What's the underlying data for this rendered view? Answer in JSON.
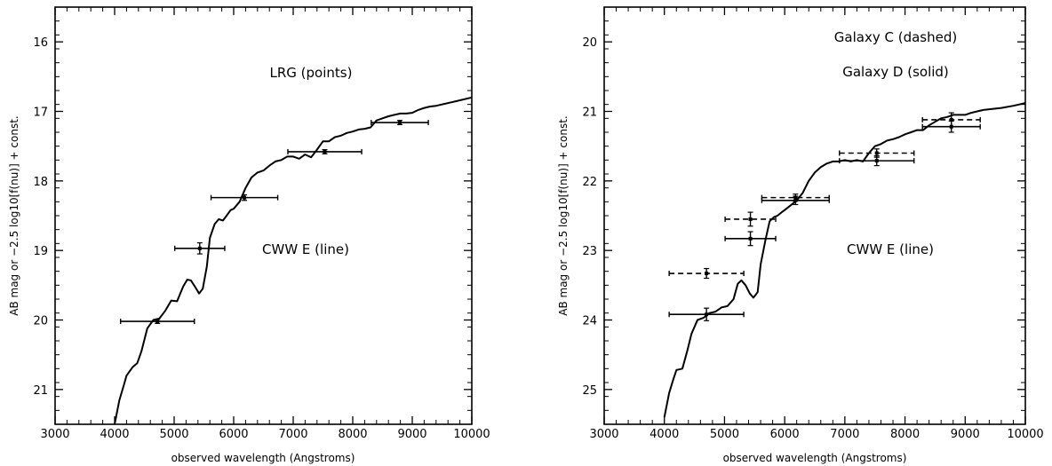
{
  "chart_data": [
    {
      "type": "line",
      "xlabel": "observed wavelength (Angstroms)",
      "ylabel": "AB mag or −2.5 log10[f(nu)] + const.",
      "xlim": [
        3000,
        10000
      ],
      "ylim": [
        21.5,
        15.5
      ],
      "y_inverted": true,
      "x_ticks": [
        3000,
        4000,
        5000,
        6000,
        7000,
        8000,
        9000,
        10000
      ],
      "y_ticks": [
        16,
        17,
        18,
        19,
        20,
        21
      ],
      "annotations": [
        "LRG (points)",
        "CWW E (line)"
      ],
      "series": [
        {
          "name": "CWW E",
          "style": "solid",
          "x": [
            4000,
            4080,
            4150,
            4200,
            4300,
            4380,
            4450,
            4550,
            4650,
            4750,
            4850,
            4950,
            5050,
            5150,
            5220,
            5280,
            5350,
            5420,
            5480,
            5550,
            5600,
            5680,
            5750,
            5820,
            5880,
            5950,
            6000,
            6100,
            6200,
            6300,
            6400,
            6500,
            6600,
            6700,
            6800,
            6900,
            7000,
            7100,
            7200,
            7300,
            7400,
            7500,
            7600,
            7700,
            7800,
            7900,
            8000,
            8100,
            8200,
            8300,
            8400,
            8500,
            8600,
            8700,
            8800,
            8900,
            9000,
            9100,
            9200,
            9300,
            9400,
            9600,
            9800,
            10000
          ],
          "y": [
            21.5,
            21.15,
            20.95,
            20.8,
            20.68,
            20.62,
            20.45,
            20.12,
            20.0,
            19.98,
            19.87,
            19.72,
            19.73,
            19.52,
            19.42,
            19.43,
            19.52,
            19.62,
            19.55,
            19.23,
            18.82,
            18.62,
            18.55,
            18.57,
            18.5,
            18.42,
            18.4,
            18.3,
            18.1,
            17.95,
            17.88,
            17.85,
            17.78,
            17.72,
            17.7,
            17.65,
            17.65,
            17.68,
            17.62,
            17.66,
            17.55,
            17.43,
            17.43,
            17.37,
            17.35,
            17.31,
            17.29,
            17.26,
            17.25,
            17.23,
            17.13,
            17.1,
            17.07,
            17.05,
            17.03,
            17.03,
            17.02,
            16.98,
            16.95,
            16.93,
            16.92,
            16.88,
            16.84,
            16.8
          ]
        },
        {
          "name": "LRG",
          "style": "points",
          "x": [
            4720,
            5430,
            6180,
            7530,
            8790
          ],
          "y": [
            20.02,
            18.97,
            18.24,
            17.58,
            17.16
          ],
          "x_err": [
            620,
            420,
            560,
            620,
            480
          ],
          "y_err": [
            0.03,
            0.08,
            0.04,
            0.03,
            0.03
          ]
        }
      ]
    },
    {
      "type": "line",
      "xlabel": "observed wavelength (Angstroms)",
      "ylabel": "AB mag or −2.5 log10[f(nu)] + const.",
      "xlim": [
        3000,
        10000
      ],
      "ylim": [
        25.5,
        19.5
      ],
      "y_inverted": true,
      "x_ticks": [
        3000,
        4000,
        5000,
        6000,
        7000,
        8000,
        9000,
        10000
      ],
      "y_ticks": [
        20,
        21,
        22,
        23,
        24,
        25
      ],
      "annotations": [
        "Galaxy C (dashed)",
        "Galaxy D (solid)",
        "CWW E (line)"
      ],
      "series": [
        {
          "name": "CWW E",
          "style": "solid",
          "x": [
            4000,
            4080,
            4150,
            4200,
            4300,
            4380,
            4450,
            4550,
            4650,
            4750,
            4850,
            4950,
            5050,
            5150,
            5220,
            5280,
            5350,
            5420,
            5480,
            5550,
            5600,
            5680,
            5750,
            5820,
            5880,
            5950,
            6000,
            6100,
            6200,
            6300,
            6400,
            6500,
            6600,
            6700,
            6800,
            6900,
            7000,
            7100,
            7200,
            7300,
            7400,
            7500,
            7600,
            7700,
            7800,
            7900,
            8000,
            8100,
            8200,
            8300,
            8400,
            8500,
            8600,
            8700,
            8800,
            8900,
            9000,
            9100,
            9200,
            9300,
            9400,
            9600,
            9800,
            10000
          ],
          "y": [
            25.4,
            25.05,
            24.85,
            24.72,
            24.7,
            24.45,
            24.2,
            24.0,
            23.97,
            23.9,
            23.88,
            23.82,
            23.8,
            23.7,
            23.48,
            23.43,
            23.5,
            23.62,
            23.68,
            23.6,
            23.2,
            22.85,
            22.58,
            22.52,
            22.5,
            22.45,
            22.42,
            22.35,
            22.28,
            22.17,
            22.0,
            21.88,
            21.8,
            21.75,
            21.72,
            21.72,
            21.7,
            21.72,
            21.7,
            21.72,
            21.6,
            21.5,
            21.47,
            21.42,
            21.4,
            21.37,
            21.33,
            21.3,
            21.27,
            21.27,
            21.2,
            21.15,
            21.1,
            21.08,
            21.05,
            21.05,
            21.05,
            21.02,
            21.0,
            20.98,
            20.97,
            20.95,
            20.92,
            20.88
          ]
        },
        {
          "name": "Galaxy C",
          "style": "dashed",
          "x": [
            4700,
            5430,
            6180,
            7530,
            8770
          ],
          "y": [
            23.33,
            22.55,
            22.24,
            21.6,
            21.12
          ],
          "x_err": [
            620,
            420,
            560,
            620,
            480
          ],
          "y_err": [
            0.07,
            0.1,
            0.05,
            0.06,
            0.1
          ]
        },
        {
          "name": "Galaxy D",
          "style": "solid",
          "x": [
            4700,
            5430,
            6180,
            7530,
            8770
          ],
          "y": [
            23.92,
            22.83,
            22.28,
            21.71,
            21.22
          ],
          "x_err": [
            620,
            420,
            560,
            620,
            480
          ],
          "y_err": [
            0.09,
            0.1,
            0.06,
            0.07,
            0.08
          ]
        }
      ]
    }
  ]
}
